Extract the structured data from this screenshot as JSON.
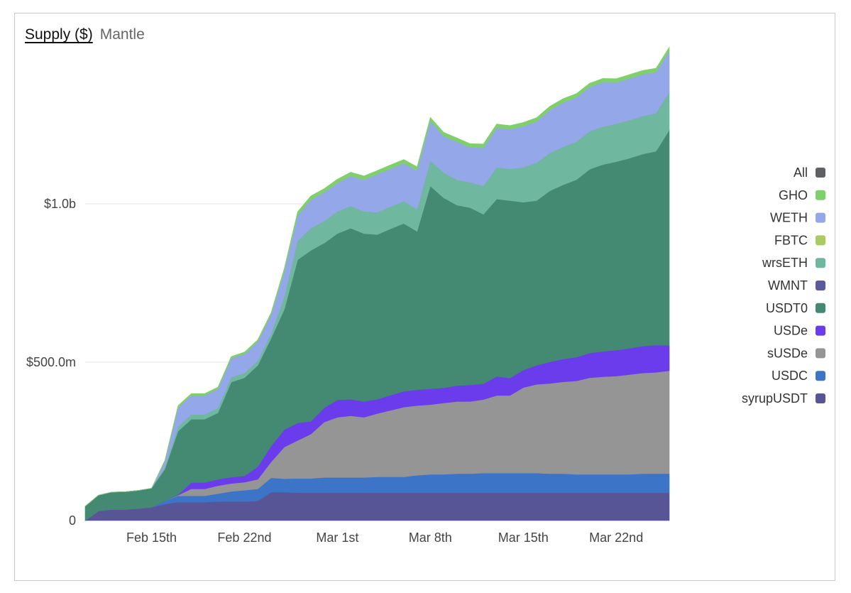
{
  "header": {
    "title": "Supply ($)",
    "subtitle": "Mantle"
  },
  "chart_data": {
    "type": "area",
    "stacked": true,
    "title": "Supply ($)",
    "subtitle": "Mantle",
    "xlabel": "",
    "ylabel": "",
    "ylim": [
      0,
      1450000000
    ],
    "yticks": [
      {
        "value": 0,
        "label": "0"
      },
      {
        "value": 500000000,
        "label": "$500.0m"
      },
      {
        "value": 1000000000,
        "label": "$1.0b"
      }
    ],
    "xticks": [
      {
        "day": 5,
        "label": "Feb 15th"
      },
      {
        "day": 12,
        "label": "Feb 22nd"
      },
      {
        "day": 19,
        "label": "Mar 1st"
      },
      {
        "day": 26,
        "label": "Mar 8th"
      },
      {
        "day": 33,
        "label": "Mar 15th"
      },
      {
        "day": 40,
        "label": "Mar 22nd"
      }
    ],
    "x_start": "Feb 10th",
    "x_days": [
      0,
      1,
      2,
      3,
      4,
      5,
      6,
      7,
      8,
      9,
      10,
      11,
      12,
      13,
      14,
      15,
      16,
      17,
      18,
      19,
      20,
      21,
      22,
      23,
      24,
      25,
      26,
      27,
      28,
      29,
      30,
      31,
      32,
      33,
      34,
      35,
      36,
      37,
      38,
      39,
      40,
      41,
      42,
      43,
      44
    ],
    "legend_position": "right",
    "legend_items": [
      "All",
      "GHO",
      "WETH",
      "FBTC",
      "wrsETH",
      "WMNT",
      "USDT0",
      "USDe",
      "sUSDe",
      "USDC",
      "syrupUSDT"
    ],
    "legend_colors": {
      "All": "#5f5f66",
      "GHO": "#7fd06a",
      "WETH": "#94a7e8",
      "FBTC": "#a9cc62",
      "wrsETH": "#70b7a0",
      "WMNT": "#5b5a9e",
      "USDT0": "#448a72",
      "USDe": "#6a3cec",
      "sUSDe": "#959595",
      "USDC": "#3c75c8",
      "syrupUSDT": "#585596"
    },
    "series": [
      {
        "name": "syrupUSDT",
        "color": "#585596",
        "values": [
          0,
          30,
          35,
          35,
          38,
          42,
          52,
          58,
          58,
          58,
          60,
          60,
          60,
          62,
          90,
          90,
          88,
          88,
          88,
          88,
          88,
          88,
          88,
          88,
          88,
          88,
          88,
          88,
          88,
          88,
          88,
          88,
          88,
          88,
          88,
          88,
          88,
          88,
          88,
          88,
          88,
          88,
          88,
          88,
          88
        ]
      },
      {
        "name": "USDC",
        "color": "#3c75c8",
        "values": [
          0,
          0,
          0,
          0,
          0,
          0,
          10,
          20,
          20,
          20,
          25,
          32,
          36,
          38,
          45,
          42,
          45,
          45,
          48,
          48,
          48,
          48,
          50,
          50,
          50,
          55,
          58,
          58,
          60,
          60,
          62,
          62,
          62,
          62,
          62,
          60,
          60,
          58,
          58,
          58,
          58,
          58,
          60,
          60,
          60
        ]
      },
      {
        "name": "sUSDe",
        "color": "#959595",
        "values": [
          0,
          0,
          0,
          0,
          0,
          0,
          0,
          2,
          22,
          22,
          25,
          25,
          25,
          30,
          50,
          100,
          120,
          140,
          175,
          190,
          195,
          190,
          200,
          210,
          220,
          220,
          220,
          225,
          228,
          228,
          232,
          245,
          245,
          270,
          280,
          285,
          290,
          295,
          305,
          308,
          310,
          315,
          318,
          320,
          325
        ]
      },
      {
        "name": "USDe",
        "color": "#6a3cec",
        "values": [
          0,
          0,
          0,
          0,
          0,
          0,
          0,
          2,
          20,
          20,
          20,
          20,
          20,
          40,
          50,
          55,
          55,
          40,
          45,
          55,
          52,
          50,
          45,
          48,
          50,
          50,
          50,
          48,
          50,
          52,
          50,
          60,
          55,
          55,
          60,
          68,
          72,
          75,
          78,
          80,
          82,
          83,
          85,
          86,
          80
        ]
      },
      {
        "name": "USDT0",
        "color": "#448a72",
        "values": [
          45,
          50,
          55,
          56,
          57,
          60,
          100,
          200,
          200,
          200,
          210,
          300,
          310,
          320,
          340,
          380,
          515,
          540,
          520,
          525,
          540,
          530,
          520,
          525,
          530,
          500,
          640,
          600,
          570,
          560,
          535,
          560,
          560,
          530,
          520,
          540,
          550,
          560,
          580,
          590,
          595,
          600,
          606,
          612,
          680
        ]
      },
      {
        "name": "wrsETH",
        "color": "#70b7a0",
        "values": [
          0,
          0,
          0,
          0,
          0,
          0,
          5,
          15,
          15,
          15,
          15,
          15,
          15,
          15,
          15,
          40,
          60,
          70,
          70,
          70,
          70,
          70,
          70,
          70,
          70,
          70,
          80,
          80,
          80,
          80,
          90,
          100,
          100,
          110,
          120,
          120,
          120,
          120,
          120,
          120,
          120,
          120,
          120,
          120,
          120
        ]
      },
      {
        "name": "WMNT",
        "color": "#5b5a9e",
        "values": [
          0,
          0,
          0,
          0,
          0,
          0,
          0,
          0,
          0,
          0,
          0,
          0,
          0,
          0,
          0,
          0,
          0,
          0,
          0,
          0,
          0,
          0,
          0,
          0,
          0,
          0,
          0,
          0,
          0,
          0,
          0,
          0,
          0,
          0,
          0,
          0,
          0,
          0,
          0,
          0,
          0,
          0,
          0,
          0,
          0
        ]
      },
      {
        "name": "FBTC",
        "color": "#a9cc62",
        "values": [
          0,
          0,
          0,
          0,
          0,
          0,
          0,
          0,
          0,
          0,
          0,
          0,
          0,
          0,
          0,
          0,
          0,
          0,
          0,
          0,
          0,
          0,
          0,
          0,
          0,
          0,
          0,
          0,
          0,
          0,
          0,
          0,
          0,
          0,
          0,
          0,
          0,
          0,
          0,
          0,
          0,
          0,
          0,
          0,
          0
        ]
      },
      {
        "name": "WETH",
        "color": "#94a7e8",
        "values": [
          0,
          0,
          0,
          0,
          0,
          0,
          20,
          60,
          60,
          60,
          60,
          60,
          60,
          60,
          60,
          80,
          80,
          90,
          90,
          90,
          95,
          100,
          120,
          120,
          120,
          122,
          125,
          115,
          120,
          110,
          120,
          125,
          125,
          130,
          130,
          135,
          140,
          140,
          140,
          140,
          130,
          132,
          132,
          130,
          130
        ]
      },
      {
        "name": "GHO",
        "color": "#7fd06a",
        "values": [
          0,
          0,
          0,
          0,
          0,
          0,
          3,
          6,
          6,
          6,
          6,
          6,
          6,
          6,
          6,
          10,
          12,
          12,
          12,
          12,
          12,
          12,
          12,
          12,
          12,
          12,
          12,
          12,
          12,
          12,
          12,
          12,
          12,
          12,
          12,
          12,
          12,
          12,
          12,
          12,
          12,
          12,
          12,
          12,
          12
        ]
      }
    ],
    "value_unit": "millions USD"
  }
}
